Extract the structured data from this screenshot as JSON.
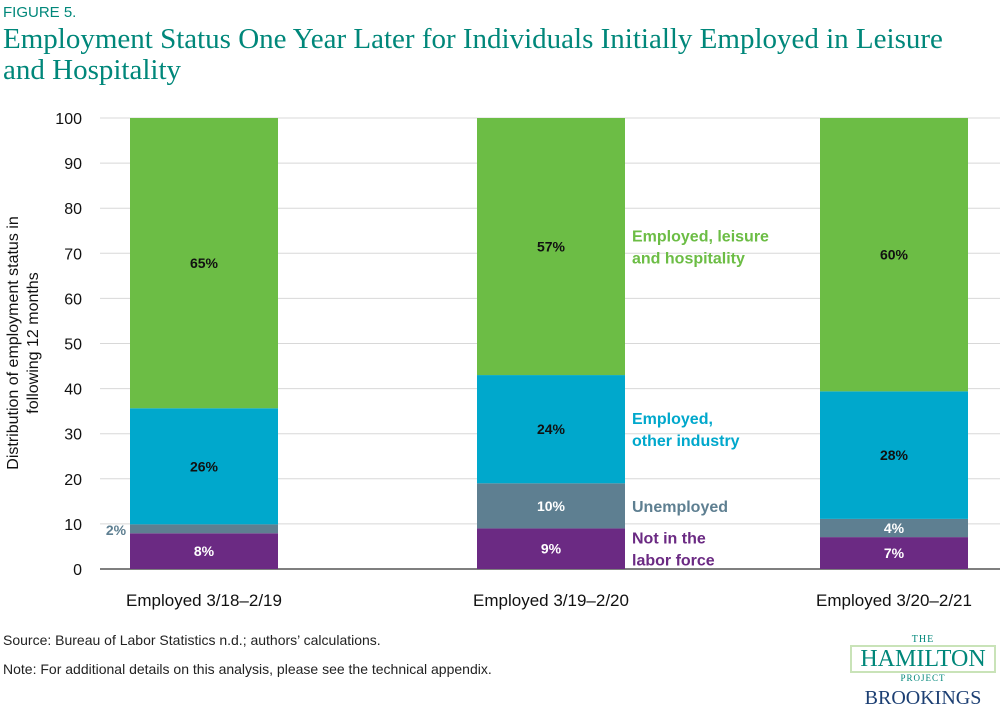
{
  "figure_label": "FIGURE 5.",
  "title": "Employment Status One Year Later for Individuals Initially Employed in Leisure and Hospitality",
  "source": "Source:  Bureau of Labor Statistics n.d.; authors’ calculations.",
  "note": "Note: For additional details on this analysis, please see the technical appendix.",
  "logo": {
    "the": "THE",
    "hamilton": "HAMILTON",
    "project": "PROJECT",
    "brookings": "BROOKINGS"
  },
  "chart_data": {
    "type": "bar",
    "stacked": true,
    "ylabel": "Distribution of employment status in following 12 months",
    "ylabel_lines": [
      "Distribution of employment status in",
      "following 12 months"
    ],
    "ylim": [
      0,
      100
    ],
    "yticks": [
      0,
      10,
      20,
      30,
      40,
      50,
      60,
      70,
      80,
      90,
      100
    ],
    "grid": false,
    "categories": [
      "Employed 3/18–2/19",
      "Employed 3/19–2/20",
      "Employed 3/20–2/21"
    ],
    "series": [
      {
        "name": "Not in the labor force",
        "label_lines": [
          "Not in the",
          "labor force"
        ],
        "color": "#6b2a83",
        "values": [
          8,
          9,
          7
        ],
        "labels": [
          "8%",
          "9%",
          "7%"
        ],
        "label_color": "#ffffff"
      },
      {
        "name": "Unemployed",
        "label_lines": [
          "Unemployed"
        ],
        "color": "#5e7f91",
        "values": [
          2,
          10,
          4
        ],
        "labels": [
          "2%",
          "10%",
          "4%"
        ],
        "label_color": "#ffffff"
      },
      {
        "name": "Employed, other industry",
        "label_lines": [
          "Employed,",
          "other industry"
        ],
        "color": "#00a8cc",
        "values": [
          26,
          24,
          28
        ],
        "labels": [
          "26%",
          "24%",
          "28%"
        ],
        "label_color": "#111111"
      },
      {
        "name": "Employed, leisure and hospitality",
        "label_lines": [
          "Employed, leisure",
          "and hospitality"
        ],
        "color": "#6cbd45",
        "values": [
          65,
          57,
          60
        ],
        "labels": [
          "65%",
          "57%",
          "60%"
        ],
        "label_color": "#111111"
      }
    ],
    "legend": "inline-right-of-middle-bar"
  }
}
